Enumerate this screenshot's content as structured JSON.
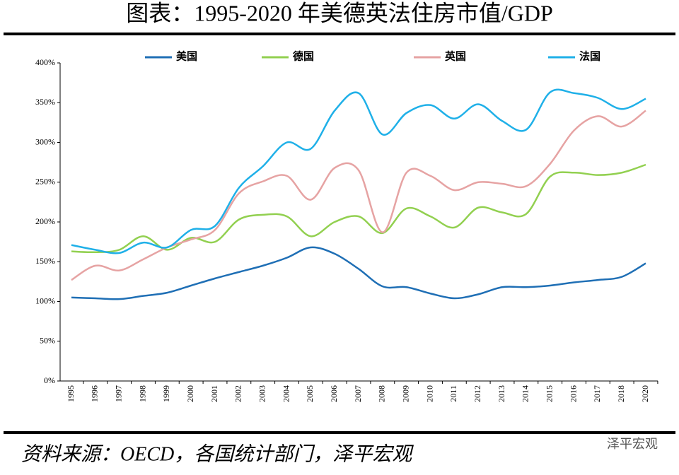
{
  "chart_data": {
    "type": "line",
    "title": "图表：1995-2020 年美德英法住房市值/GDP",
    "source": "资料来源：OECD，各国统计部门，泽平宏观",
    "watermark": "泽平宏观",
    "categories": [
      "1995",
      "1996",
      "1997",
      "1998",
      "1999",
      "2000",
      "2001",
      "2002",
      "2003",
      "2004",
      "2005",
      "2006",
      "2007",
      "2008",
      "2009",
      "2010",
      "2011",
      "2012",
      "2013",
      "2014",
      "2015",
      "2016",
      "2017",
      "2018",
      "2020"
    ],
    "series": [
      {
        "name": "美国",
        "color": "#1f6fb5",
        "values": [
          105,
          104,
          103,
          107,
          111,
          120,
          129,
          137,
          145,
          155,
          168,
          160,
          141,
          119,
          118,
          110,
          104,
          109,
          118,
          118,
          120,
          124,
          127,
          131,
          148
        ]
      },
      {
        "name": "德国",
        "color": "#92d050",
        "values": [
          163,
          162,
          165,
          182,
          165,
          180,
          175,
          203,
          209,
          207,
          182,
          200,
          207,
          186,
          217,
          207,
          193,
          218,
          212,
          210,
          257,
          262,
          259,
          262,
          272
        ]
      },
      {
        "name": "英国",
        "color": "#e6a3a3",
        "values": [
          127,
          145,
          139,
          153,
          168,
          178,
          190,
          236,
          251,
          258,
          228,
          268,
          265,
          187,
          262,
          258,
          240,
          250,
          248,
          245,
          273,
          315,
          333,
          320,
          340
        ]
      },
      {
        "name": "法国",
        "color": "#1fb0e8",
        "values": [
          171,
          165,
          161,
          174,
          168,
          190,
          195,
          243,
          270,
          300,
          292,
          340,
          362,
          310,
          337,
          347,
          330,
          348,
          327,
          316,
          363,
          362,
          356,
          342,
          355
        ]
      }
    ],
    "ylim": [
      0,
      400
    ],
    "yticks": [
      {
        "value": 0,
        "label": "0%"
      },
      {
        "value": 50,
        "label": "50%"
      },
      {
        "value": 100,
        "label": "100%"
      },
      {
        "value": 150,
        "label": "150%"
      },
      {
        "value": 200,
        "label": "200%"
      },
      {
        "value": 250,
        "label": "250%"
      },
      {
        "value": 300,
        "label": "300%"
      },
      {
        "value": 350,
        "label": "350%"
      },
      {
        "value": 400,
        "label": "400%"
      }
    ],
    "legend": "top"
  }
}
